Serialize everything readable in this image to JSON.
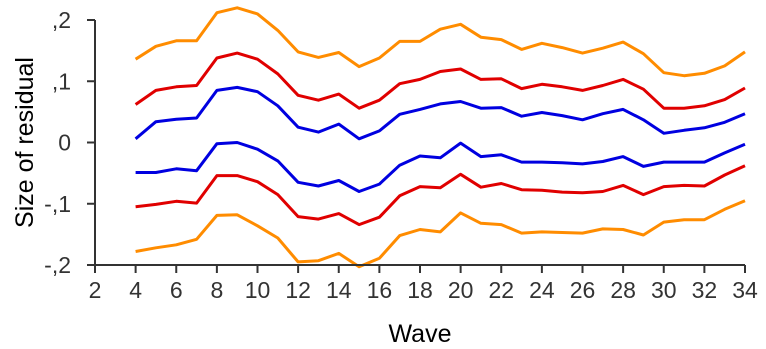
{
  "chart_data": {
    "type": "line",
    "title": "",
    "xlabel": "Wave",
    "ylabel": "Size of residual",
    "xlim": [
      2,
      34
    ],
    "ylim": [
      -0.2,
      0.2
    ],
    "x_ticks": [
      2,
      4,
      6,
      8,
      10,
      12,
      14,
      16,
      18,
      20,
      22,
      24,
      26,
      28,
      30,
      32,
      34
    ],
    "y_ticks": [
      {
        "value": -0.2,
        "label": "-,2"
      },
      {
        "value": -0.1,
        "label": "-,1"
      },
      {
        "value": 0,
        "label": "0"
      },
      {
        "value": 0.1,
        "label": ",1"
      },
      {
        "value": 0.2,
        "label": ",2"
      }
    ],
    "grid": false,
    "legend": "none",
    "x": [
      4,
      5,
      6,
      7,
      8,
      9,
      10,
      11,
      12,
      13,
      14,
      15,
      16,
      17,
      18,
      19,
      20,
      21,
      22,
      23,
      24,
      25,
      26,
      27,
      28,
      29,
      30,
      31,
      32,
      33,
      34
    ],
    "series": [
      {
        "color": "#ff8c00",
        "values": [
          0.136,
          0.157,
          0.166,
          0.166,
          0.212,
          0.22,
          0.21,
          0.183,
          0.148,
          0.139,
          0.147,
          0.124,
          0.138,
          0.165,
          0.165,
          0.185,
          0.193,
          0.172,
          0.168,
          0.152,
          0.162,
          0.155,
          0.146,
          0.154,
          0.164,
          0.145,
          0.114,
          0.109,
          0.113,
          0.125,
          0.148
        ]
      },
      {
        "color": "#e00000",
        "values": [
          0.062,
          0.085,
          0.091,
          0.093,
          0.138,
          0.146,
          0.136,
          0.112,
          0.077,
          0.069,
          0.079,
          0.056,
          0.069,
          0.096,
          0.103,
          0.116,
          0.12,
          0.103,
          0.104,
          0.088,
          0.095,
          0.091,
          0.085,
          0.093,
          0.103,
          0.087,
          0.056,
          0.056,
          0.06,
          0.07,
          0.089
        ]
      },
      {
        "color": "#0000e0",
        "values": [
          0.006,
          0.034,
          0.038,
          0.04,
          0.085,
          0.09,
          0.083,
          0.06,
          0.025,
          0.017,
          0.03,
          0.006,
          0.019,
          0.046,
          0.054,
          0.063,
          0.067,
          0.056,
          0.057,
          0.043,
          0.049,
          0.044,
          0.037,
          0.047,
          0.054,
          0.037,
          0.015,
          0.02,
          0.024,
          0.033,
          0.047
        ]
      },
      {
        "color": "#0000e0",
        "values": [
          -0.049,
          -0.049,
          -0.043,
          -0.046,
          -0.002,
          0.0,
          -0.011,
          -0.03,
          -0.065,
          -0.071,
          -0.062,
          -0.08,
          -0.068,
          -0.037,
          -0.022,
          -0.025,
          -0.001,
          -0.023,
          -0.02,
          -0.032,
          -0.032,
          -0.033,
          -0.035,
          -0.031,
          -0.023,
          -0.039,
          -0.032,
          -0.032,
          -0.032,
          -0.017,
          -0.003
        ]
      },
      {
        "color": "#e00000",
        "values": [
          -0.105,
          -0.101,
          -0.096,
          -0.099,
          -0.054,
          -0.054,
          -0.064,
          -0.085,
          -0.121,
          -0.125,
          -0.116,
          -0.134,
          -0.122,
          -0.087,
          -0.072,
          -0.074,
          -0.052,
          -0.073,
          -0.067,
          -0.077,
          -0.078,
          -0.081,
          -0.082,
          -0.08,
          -0.07,
          -0.085,
          -0.072,
          -0.07,
          -0.071,
          -0.053,
          -0.038
        ]
      },
      {
        "color": "#ff8c00",
        "values": [
          -0.178,
          -0.172,
          -0.167,
          -0.158,
          -0.119,
          -0.118,
          -0.136,
          -0.156,
          -0.195,
          -0.193,
          -0.181,
          -0.203,
          -0.189,
          -0.152,
          -0.142,
          -0.146,
          -0.115,
          -0.132,
          -0.134,
          -0.148,
          -0.146,
          -0.147,
          -0.148,
          -0.141,
          -0.142,
          -0.151,
          -0.13,
          -0.126,
          -0.126,
          -0.109,
          -0.095
        ]
      }
    ]
  }
}
